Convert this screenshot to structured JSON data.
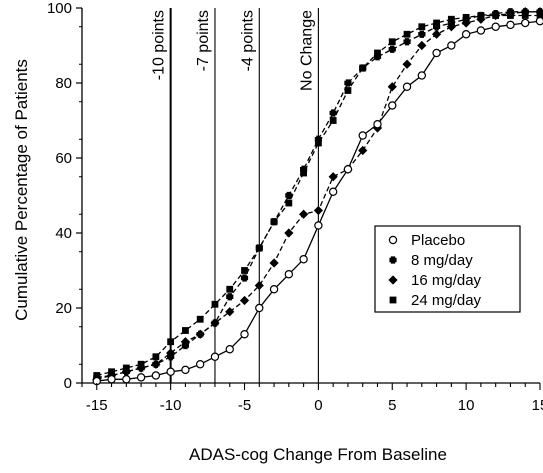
{
  "chart_data": {
    "type": "line",
    "title": "",
    "xlabel": "ADAS-cog Change From Baseline",
    "ylabel": "Cumulative  Percentage of Patients",
    "xlim": [
      -16,
      15
    ],
    "ylim": [
      0,
      100
    ],
    "xticks": [
      -15,
      -10,
      -5,
      0,
      5,
      10,
      15
    ],
    "yticks": [
      0,
      20,
      40,
      60,
      80,
      100
    ],
    "grid": false,
    "legend_position": "right",
    "reference_lines": [
      {
        "x": -10,
        "label": "-10 points"
      },
      {
        "x": -7,
        "label": "-7 points"
      },
      {
        "x": -4,
        "label": "-4 points"
      },
      {
        "x": 0,
        "label": "No Change"
      }
    ],
    "series": [
      {
        "name": "Placebo",
        "marker": "circle-open",
        "dash": "solid",
        "x": [
          -15,
          -14,
          -13,
          -12,
          -11,
          -10,
          -9,
          -8,
          -7,
          -6,
          -5,
          -4,
          -3,
          -2,
          -1,
          0,
          1,
          2,
          3,
          4,
          5,
          6,
          7,
          8,
          9,
          10,
          11,
          12,
          13,
          14,
          15
        ],
        "y": [
          0.5,
          1,
          1,
          1.5,
          2,
          3,
          3.5,
          5,
          7,
          9,
          13,
          20,
          25,
          29,
          33,
          42,
          51,
          57,
          66,
          69,
          74,
          79,
          82,
          88,
          90,
          93,
          94,
          95,
          95.5,
          96,
          96.5
        ]
      },
      {
        "name": "8 mg/day",
        "marker": "plus-filled",
        "dash": "dashed",
        "x": [
          -15,
          -14,
          -13,
          -12,
          -11,
          -10,
          -9,
          -8,
          -7,
          -6,
          -5,
          -4,
          -3,
          -2,
          -1,
          0,
          1,
          2,
          3,
          4,
          5,
          6,
          7,
          8,
          9,
          10,
          11,
          12,
          13,
          14,
          15
        ],
        "y": [
          1.5,
          2,
          3,
          4,
          5,
          7,
          10,
          13,
          16,
          23,
          28,
          36,
          43,
          50,
          57,
          65,
          72,
          80,
          84,
          87,
          89,
          91,
          93,
          95,
          96,
          97,
          98,
          98.5,
          99,
          99,
          99
        ]
      },
      {
        "name": "16 mg/day",
        "marker": "diamond",
        "dash": "dashed",
        "x": [
          -15,
          -14,
          -13,
          -12,
          -11,
          -10,
          -9,
          -8,
          -7,
          -6,
          -5,
          -4,
          -3,
          -2,
          -1,
          0,
          1,
          2,
          3,
          4,
          5,
          6,
          7,
          8,
          9,
          10,
          11,
          12,
          13,
          14,
          15
        ],
        "y": [
          1,
          2,
          3,
          4,
          5,
          8,
          11,
          13,
          16,
          19,
          22,
          26,
          32,
          40,
          45,
          46,
          55,
          57,
          62,
          68,
          79,
          85,
          90,
          93,
          95,
          96,
          97,
          98,
          98.5,
          99,
          99
        ]
      },
      {
        "name": "24 mg/day",
        "marker": "square",
        "dash": "dashed",
        "x": [
          -15,
          -14,
          -13,
          -12,
          -11,
          -10,
          -9,
          -8,
          -7,
          -6,
          -5,
          -4,
          -3,
          -2,
          -1,
          0,
          1,
          2,
          3,
          4,
          5,
          6,
          7,
          8,
          9,
          10,
          11,
          12,
          13,
          14,
          15
        ],
        "y": [
          2,
          3,
          4,
          5,
          7,
          11,
          14,
          17,
          21,
          25,
          30,
          36,
          43,
          48,
          56,
          64,
          70,
          78,
          84,
          88,
          91,
          93,
          95,
          96,
          97,
          97.5,
          98,
          98,
          98,
          98,
          98
        ]
      }
    ]
  }
}
